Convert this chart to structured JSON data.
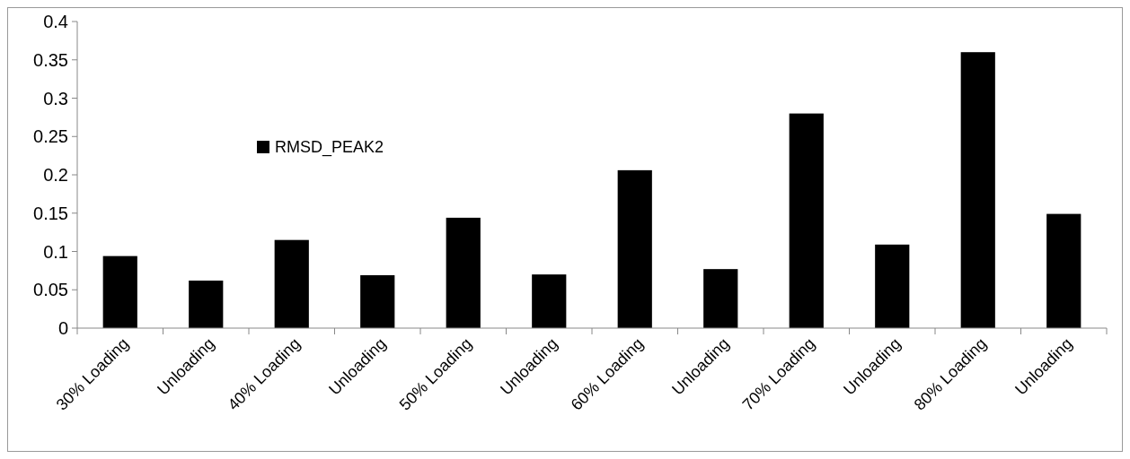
{
  "chart_data": {
    "type": "bar",
    "categories": [
      "30% Loading",
      "Unloading",
      "40% Loading",
      "Unloading",
      "50% Loading",
      "Unloading",
      "60% Loading",
      "Unloading",
      "70% Loading",
      "Unloading",
      "80% Loading",
      "Unloading"
    ],
    "series": [
      {
        "name": "RMSD_PEAK2",
        "color": "#000000",
        "values": [
          0.094,
          0.062,
          0.115,
          0.069,
          0.144,
          0.07,
          0.206,
          0.077,
          0.28,
          0.109,
          0.36,
          0.149
        ]
      }
    ],
    "ylim": [
      0,
      0.4
    ],
    "yticks": [
      0,
      0.05,
      0.1,
      0.15,
      0.2,
      0.25,
      0.3,
      0.35,
      0.4
    ],
    "grid": false,
    "legend": "left"
  }
}
